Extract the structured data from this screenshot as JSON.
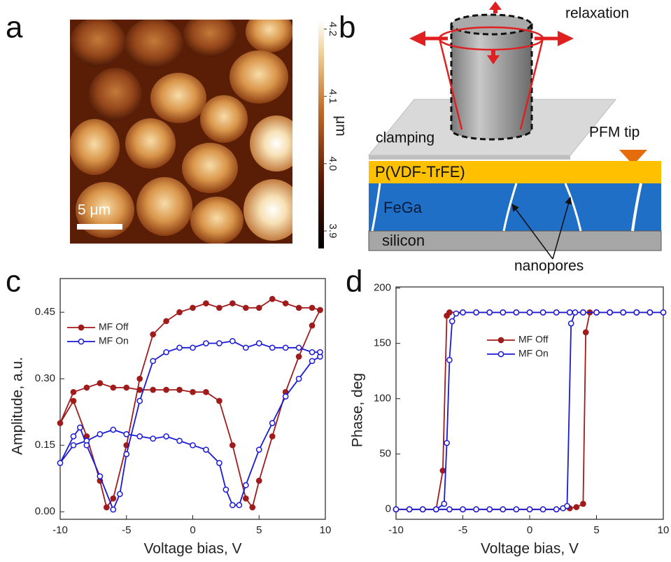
{
  "image_panel": {
    "panel_label": "a",
    "scale_bar": "5 μm",
    "colorbar": {
      "label": "μm",
      "lim": [
        3.874,
        4.214
      ],
      "ticks": [
        3.9,
        {
          "value": 4,
          "label": "4.0"
        },
        4.1,
        4.2
      ]
    }
  },
  "diagram": {
    "panel_label": "b",
    "arrow_label": "relaxation",
    "substrate_label": "clamping",
    "tip_label": "PFM tip",
    "layers": [
      "P(VDF-TrFE)",
      "FeGa",
      "silicon"
    ],
    "pore_label": "nanopores"
  },
  "chart_data": [
    {
      "panel_label": "c",
      "type": "line",
      "xlabel": "Voltage bias, V",
      "ylabel": "Amplitude, a.u.",
      "xlim": [
        -10,
        10
      ],
      "xticks": [
        -10,
        -5,
        0,
        5,
        10
      ],
      "ylim": [
        -0.017,
        0.526
      ],
      "yticks": [
        {
          "value": 0,
          "label": "0.00"
        },
        0.15,
        {
          "value": 0.3,
          "label": "0.30"
        },
        0.45
      ],
      "legend": "upper left",
      "series": [
        {
          "name": "MF Off",
          "color": "#a01c1c",
          "marker": "filled",
          "x": [
            9.6,
            9,
            8,
            7,
            6,
            5,
            4.5,
            4,
            3,
            2,
            1,
            0,
            -1,
            -2,
            -3,
            -4,
            -5,
            -6,
            -7,
            -8,
            -9,
            -10,
            -9,
            -8,
            -7,
            -6.5,
            -6,
            -5,
            -4,
            -3,
            -2,
            -1,
            0,
            1,
            2,
            3,
            4,
            5,
            6,
            7,
            8,
            9,
            9.6
          ],
          "values": [
            0.455,
            0.42,
            0.35,
            0.27,
            0.17,
            0.07,
            0.01,
            0.03,
            0.15,
            0.25,
            0.27,
            0.27,
            0.275,
            0.275,
            0.275,
            0.275,
            0.28,
            0.28,
            0.29,
            0.28,
            0.27,
            0.2,
            0.25,
            0.17,
            0.07,
            0.01,
            0.03,
            0.15,
            0.3,
            0.4,
            0.43,
            0.45,
            0.46,
            0.47,
            0.46,
            0.47,
            0.46,
            0.46,
            0.48,
            0.47,
            0.46,
            0.46,
            0.455
          ]
        },
        {
          "name": "MF On",
          "color": "#1a1ad6",
          "marker": "open",
          "x": [
            9.6,
            9,
            8,
            7,
            6,
            5,
            4,
            3.5,
            3,
            2.5,
            2,
            1,
            0,
            -1,
            -2,
            -3,
            -4,
            -5,
            -6,
            -7,
            -8,
            -9,
            -10,
            -9,
            -8.5,
            -8,
            -7,
            -6,
            -5.5,
            -5,
            -4,
            -3,
            -2,
            -1,
            0,
            1,
            2,
            3,
            4,
            5,
            6,
            7,
            8,
            9,
            9.6
          ],
          "values": [
            0.35,
            0.34,
            0.3,
            0.26,
            0.2,
            0.14,
            0.06,
            0.015,
            0.015,
            0.05,
            0.11,
            0.14,
            0.15,
            0.16,
            0.17,
            0.165,
            0.17,
            0.175,
            0.185,
            0.175,
            0.16,
            0.15,
            0.11,
            0.17,
            0.19,
            0.15,
            0.08,
            0.005,
            0.04,
            0.13,
            0.25,
            0.34,
            0.36,
            0.37,
            0.37,
            0.38,
            0.38,
            0.385,
            0.37,
            0.38,
            0.37,
            0.37,
            0.37,
            0.36,
            0.36
          ]
        }
      ]
    },
    {
      "panel_label": "d",
      "type": "line",
      "xlabel": "Voltage bias, V",
      "ylabel": "Phase, deg",
      "xlim": [
        -10,
        10
      ],
      "xticks": [
        -10,
        -5,
        0,
        5,
        10
      ],
      "ylim": [
        -9,
        201
      ],
      "yticks": [
        0,
        50,
        100,
        150,
        200
      ],
      "legend": "upper center",
      "series": [
        {
          "name": "MF Off",
          "color": "#a01c1c",
          "marker": "filled",
          "x": [
            -10,
            -9,
            -8,
            -7,
            -6,
            -5,
            -4,
            -3,
            -2,
            -1,
            0,
            1,
            2,
            3,
            3.5,
            4,
            4.2,
            4.5,
            5,
            6,
            7,
            8,
            9,
            10,
            9,
            8,
            7,
            6,
            5,
            4,
            3,
            2,
            1,
            0,
            -1,
            -2,
            -3,
            -4,
            -5,
            -6,
            -6.2,
            -6.5,
            -7,
            -8,
            -9,
            -10
          ],
          "values": [
            0,
            0,
            0,
            0,
            0,
            0,
            0,
            0,
            0,
            0,
            0,
            0,
            0,
            1,
            2,
            5,
            160,
            178,
            178,
            178,
            178,
            178,
            178,
            178,
            178,
            178,
            178,
            178,
            178,
            178,
            178,
            178,
            178,
            178,
            178,
            178,
            178,
            178,
            178,
            178,
            175,
            35,
            0,
            0,
            0,
            0
          ]
        },
        {
          "name": "MF On",
          "color": "#1a1ad6",
          "marker": "open",
          "x": [
            -10,
            -9,
            -8,
            -7,
            -6,
            -5,
            -4,
            -3,
            -2,
            -1,
            0,
            1,
            2,
            2.5,
            2.8,
            3.1,
            3.4,
            4,
            5,
            6,
            7,
            8,
            9,
            10,
            9,
            8,
            7,
            6,
            5,
            4,
            3,
            2,
            1,
            0,
            -1,
            -2,
            -3,
            -4,
            -5,
            -5.5,
            -5.8,
            -6,
            -6.2,
            -6.4,
            -7,
            -8,
            -9,
            -10
          ],
          "values": [
            0,
            0,
            0,
            0,
            0,
            0,
            0,
            0,
            0,
            0,
            0,
            0,
            0,
            1,
            3,
            168,
            178,
            178,
            178,
            178,
            178,
            178,
            178,
            178,
            178,
            178,
            178,
            178,
            178,
            178,
            178,
            178,
            178,
            178,
            178,
            178,
            178,
            178,
            178,
            177,
            170,
            135,
            60,
            5,
            0,
            0,
            0,
            0
          ]
        }
      ]
    }
  ]
}
